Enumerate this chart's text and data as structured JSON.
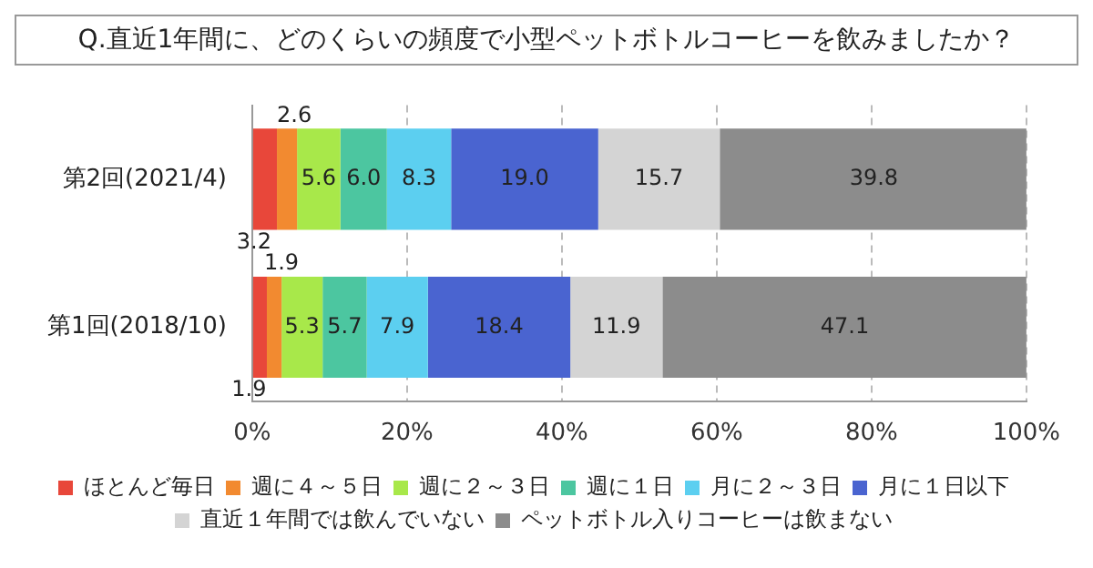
{
  "chart_data": {
    "type": "bar",
    "orientation": "horizontal",
    "stacked": true,
    "title": "Q.直近1年間に、どのくらいの頻度で小型ペットボトルコーヒーを飲みましたか？",
    "categories": [
      "第2回(2021/4)",
      "第1回(2018/10)"
    ],
    "series": [
      {
        "name": "ほとんど毎日",
        "color": "#e8473a",
        "values": [
          3.2,
          1.9
        ],
        "value_labels": [
          "3.2",
          "1.9"
        ]
      },
      {
        "name": "週に４～５日",
        "color": "#f28a30",
        "values": [
          2.6,
          1.9
        ],
        "value_labels": [
          "2.6",
          "1.9"
        ]
      },
      {
        "name": "週に２～３日",
        "color": "#a8e84a",
        "values": [
          5.6,
          5.3
        ],
        "value_labels": [
          "5.6",
          "5.3"
        ]
      },
      {
        "name": "週に１日",
        "color": "#4cc6a0",
        "values": [
          6.0,
          5.7
        ],
        "value_labels": [
          "6.0",
          "5.7"
        ]
      },
      {
        "name": "月に２～３日",
        "color": "#5ccff0",
        "values": [
          8.3,
          7.9
        ],
        "value_labels": [
          "8.3",
          "7.9"
        ]
      },
      {
        "name": "月に１日以下",
        "color": "#4a64d0",
        "values": [
          19.0,
          18.4
        ],
        "value_labels": [
          "19.0",
          "18.4"
        ]
      },
      {
        "name": "直近１年間では飲んでいない",
        "color": "#d4d4d4",
        "values": [
          15.7,
          11.9
        ],
        "value_labels": [
          "15.7",
          "11.9"
        ]
      },
      {
        "name": "ペットボトル入りコーヒーは飲まない",
        "color": "#8c8c8c",
        "values": [
          39.8,
          47.1
        ],
        "value_labels": [
          "39.8",
          "47.1"
        ]
      }
    ],
    "xlim": [
      0,
      100
    ],
    "xticks": [
      {
        "value": 0,
        "label": "0%"
      },
      {
        "value": 20,
        "label": "20%"
      },
      {
        "value": 40,
        "label": "40%"
      },
      {
        "value": 60,
        "label": "60%"
      },
      {
        "value": 80,
        "label": "80%"
      },
      {
        "value": 100,
        "label": "100%"
      }
    ],
    "grid": "x",
    "legend": "bottom"
  }
}
